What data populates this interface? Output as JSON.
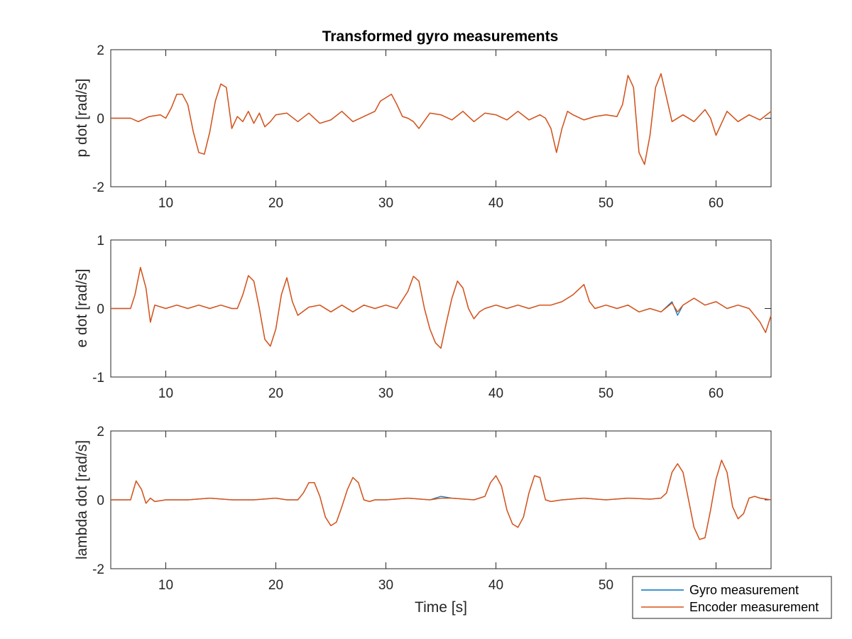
{
  "chart_data": [
    {
      "type": "line",
      "title": "Transformed gyro measurements",
      "ylabel": "p dot [rad/s]",
      "xlabel": "",
      "xlim": [
        5,
        65
      ],
      "ylim": [
        -2,
        2
      ],
      "xticks": [
        10,
        20,
        30,
        40,
        50,
        60
      ],
      "yticks": [
        -2,
        0,
        2
      ],
      "grid": false,
      "series": [
        {
          "name": "Gyro measurement",
          "color": "#0072BD",
          "x": [
            5,
            6.8,
            7.5,
            8.5,
            9.5,
            10,
            10.5,
            11,
            11.5,
            12,
            12.5,
            13,
            13.5,
            14,
            14.5,
            15,
            15.5,
            16,
            16.5,
            17,
            17.5,
            18,
            18.5,
            19,
            19.5,
            20,
            21,
            22,
            23,
            24,
            25,
            26,
            27,
            28,
            29,
            29.5,
            30,
            30.5,
            31,
            31.5,
            32,
            32.5,
            33,
            34,
            35,
            36,
            37,
            38,
            39,
            40,
            41,
            42,
            43,
            44,
            44.5,
            45,
            45.5,
            46,
            46.5,
            47,
            48,
            49,
            50,
            51,
            51.5,
            52,
            52.5,
            53,
            53.5,
            54,
            54.5,
            55,
            55.5,
            56,
            57,
            58,
            59,
            59.5,
            60,
            61,
            62,
            63,
            64,
            65
          ],
          "values": [
            0,
            0,
            -0.1,
            0.05,
            0.1,
            0,
            0.3,
            0.7,
            0.7,
            0.4,
            -0.4,
            -1.0,
            -1.05,
            -0.4,
            0.5,
            1.0,
            0.9,
            -0.3,
            0.05,
            -0.1,
            0.2,
            -0.15,
            0.15,
            -0.25,
            -0.1,
            0.1,
            0.15,
            -0.1,
            0.15,
            -0.15,
            -0.05,
            0.2,
            -0.1,
            0.05,
            0.2,
            0.5,
            0.6,
            0.7,
            0.4,
            0.05,
            0,
            -0.1,
            -0.3,
            0.15,
            0.1,
            -0.05,
            0.2,
            -0.1,
            0.15,
            0.1,
            -0.05,
            0.2,
            -0.05,
            0.1,
            0,
            -0.3,
            -1.0,
            -0.3,
            0.2,
            0.1,
            -0.05,
            0.05,
            0.1,
            0.05,
            0.4,
            1.25,
            0.9,
            -1.0,
            -1.35,
            -0.5,
            0.9,
            1.3,
            0.6,
            -0.1,
            0.1,
            -0.1,
            0.25,
            0,
            -0.5,
            0.2,
            -0.1,
            0.1,
            -0.05,
            0.2
          ]
        },
        {
          "name": "Encoder measurement",
          "color": "#D95319",
          "x": [
            5,
            6.8,
            7.5,
            8.5,
            9.5,
            10,
            10.5,
            11,
            11.5,
            12,
            12.5,
            13,
            13.5,
            14,
            14.5,
            15,
            15.5,
            16,
            16.5,
            17,
            17.5,
            18,
            18.5,
            19,
            19.5,
            20,
            21,
            22,
            23,
            24,
            25,
            26,
            27,
            28,
            29,
            29.5,
            30,
            30.5,
            31,
            31.5,
            32,
            32.5,
            33,
            34,
            35,
            36,
            37,
            38,
            39,
            40,
            41,
            42,
            43,
            44,
            44.5,
            45,
            45.5,
            46,
            46.5,
            47,
            48,
            49,
            50,
            51,
            51.5,
            52,
            52.5,
            53,
            53.5,
            54,
            54.5,
            55,
            55.5,
            56,
            57,
            58,
            59,
            59.5,
            60,
            61,
            62,
            63,
            64,
            65
          ],
          "values": [
            0,
            0,
            -0.1,
            0.05,
            0.1,
            0,
            0.3,
            0.7,
            0.7,
            0.4,
            -0.4,
            -1.0,
            -1.05,
            -0.4,
            0.5,
            1.0,
            0.9,
            -0.3,
            0.05,
            -0.1,
            0.2,
            -0.15,
            0.15,
            -0.25,
            -0.1,
            0.1,
            0.15,
            -0.1,
            0.15,
            -0.15,
            -0.05,
            0.2,
            -0.1,
            0.05,
            0.2,
            0.5,
            0.6,
            0.7,
            0.4,
            0.05,
            0,
            -0.1,
            -0.3,
            0.15,
            0.1,
            -0.05,
            0.2,
            -0.1,
            0.15,
            0.1,
            -0.05,
            0.2,
            -0.05,
            0.1,
            0,
            -0.3,
            -1.0,
            -0.3,
            0.2,
            0.1,
            -0.05,
            0.05,
            0.1,
            0.05,
            0.4,
            1.25,
            0.9,
            -1.0,
            -1.35,
            -0.5,
            0.9,
            1.3,
            0.6,
            -0.1,
            0.1,
            -0.1,
            0.25,
            0,
            -0.5,
            0.2,
            -0.1,
            0.1,
            -0.05,
            0.2
          ]
        }
      ]
    },
    {
      "type": "line",
      "title": "",
      "ylabel": "e dot [rad/s]",
      "xlabel": "",
      "xlim": [
        5,
        65
      ],
      "ylim": [
        -1,
        1
      ],
      "xticks": [
        10,
        20,
        30,
        40,
        50,
        60
      ],
      "yticks": [
        -1,
        0,
        1
      ],
      "grid": false,
      "series": [
        {
          "name": "Gyro measurement",
          "color": "#0072BD",
          "x": [
            5,
            6.8,
            7.2,
            7.7,
            8.2,
            8.6,
            9,
            10,
            11,
            12,
            13,
            14,
            15,
            16,
            16.5,
            17,
            17.5,
            18,
            18.5,
            19,
            19.5,
            20,
            20.5,
            21,
            21.5,
            22,
            23,
            24,
            25,
            26,
            27,
            28,
            29,
            30,
            31,
            32,
            32.5,
            33,
            33.5,
            34,
            34.5,
            35,
            35.5,
            36,
            36.5,
            37,
            37.5,
            38,
            38.5,
            39,
            40,
            41,
            42,
            43,
            44,
            45,
            46,
            47,
            48,
            48.5,
            49,
            50,
            51,
            52,
            53,
            54,
            55,
            56,
            56.5,
            57,
            58,
            59,
            60,
            61,
            62,
            63,
            64,
            64.5,
            65
          ],
          "values": [
            0,
            0,
            0.2,
            0.6,
            0.3,
            -0.2,
            0.05,
            0,
            0.05,
            0,
            0.05,
            0,
            0.05,
            0,
            0,
            0.2,
            0.48,
            0.4,
            0,
            -0.45,
            -0.55,
            -0.3,
            0.2,
            0.45,
            0.1,
            -0.1,
            0.02,
            0.05,
            -0.05,
            0.05,
            -0.05,
            0.05,
            0,
            0.05,
            0,
            0.25,
            0.47,
            0.4,
            0,
            -0.3,
            -0.5,
            -0.58,
            -0.2,
            0.15,
            0.4,
            0.3,
            0,
            -0.15,
            -0.05,
            0,
            0.05,
            0,
            0.05,
            0,
            0.05,
            0.05,
            0.1,
            0.2,
            0.35,
            0.1,
            0,
            0.05,
            0,
            0.05,
            -0.05,
            0,
            -0.05,
            0.1,
            -0.1,
            0.05,
            0.15,
            0.05,
            0.1,
            0,
            0.05,
            0,
            -0.2,
            -0.35,
            -0.1
          ]
        },
        {
          "name": "Encoder measurement",
          "color": "#D95319",
          "x": [
            5,
            6.8,
            7.2,
            7.7,
            8.2,
            8.6,
            9,
            10,
            11,
            12,
            13,
            14,
            15,
            16,
            16.5,
            17,
            17.5,
            18,
            18.5,
            19,
            19.5,
            20,
            20.5,
            21,
            21.5,
            22,
            23,
            24,
            25,
            26,
            27,
            28,
            29,
            30,
            31,
            32,
            32.5,
            33,
            33.5,
            34,
            34.5,
            35,
            35.5,
            36,
            36.5,
            37,
            37.5,
            38,
            38.5,
            39,
            40,
            41,
            42,
            43,
            44,
            45,
            46,
            47,
            48,
            48.5,
            49,
            50,
            51,
            52,
            53,
            54,
            55,
            56,
            56.5,
            57,
            58,
            59,
            60,
            61,
            62,
            63,
            64,
            64.5,
            65
          ],
          "values": [
            0,
            0,
            0.2,
            0.6,
            0.3,
            -0.2,
            0.05,
            0,
            0.05,
            0,
            0.05,
            0,
            0.05,
            0,
            0,
            0.2,
            0.48,
            0.4,
            0,
            -0.45,
            -0.55,
            -0.3,
            0.2,
            0.45,
            0.1,
            -0.1,
            0.02,
            0.05,
            -0.05,
            0.05,
            -0.05,
            0.05,
            0,
            0.05,
            0,
            0.25,
            0.47,
            0.4,
            0,
            -0.3,
            -0.5,
            -0.58,
            -0.2,
            0.15,
            0.4,
            0.3,
            0,
            -0.15,
            -0.05,
            0,
            0.05,
            0,
            0.05,
            0,
            0.05,
            0.05,
            0.1,
            0.2,
            0.35,
            0.1,
            0,
            0.05,
            0,
            0.05,
            -0.05,
            0,
            -0.05,
            0.08,
            -0.05,
            0.05,
            0.15,
            0.05,
            0.1,
            0,
            0.05,
            0,
            -0.2,
            -0.35,
            -0.1
          ]
        }
      ]
    },
    {
      "type": "line",
      "title": "",
      "ylabel": "lambda dot [rad/s]",
      "xlabel": "Time [s]",
      "xlim": [
        5,
        65
      ],
      "ylim": [
        -2,
        2
      ],
      "xticks": [
        10,
        20,
        30,
        40,
        50,
        60
      ],
      "yticks": [
        -2,
        0,
        2
      ],
      "grid": false,
      "series": [
        {
          "name": "Gyro measurement",
          "color": "#0072BD",
          "x": [
            5,
            6.8,
            7.3,
            7.8,
            8.2,
            8.6,
            9,
            10,
            12,
            14,
            16,
            18,
            20,
            21,
            22,
            22.5,
            23,
            23.5,
            24,
            24.5,
            25,
            25.5,
            26,
            26.5,
            27,
            27.5,
            28,
            28.5,
            29,
            30,
            32,
            34,
            35,
            36,
            38,
            39,
            39.5,
            40,
            40.5,
            41,
            41.5,
            42,
            42.5,
            43,
            43.5,
            44,
            44.5,
            45,
            46,
            48,
            50,
            52,
            54,
            55,
            55.5,
            56,
            56.5,
            57,
            57.5,
            58,
            58.5,
            59,
            59.5,
            60,
            60.5,
            61,
            61.5,
            62,
            62.5,
            63,
            63.5,
            64,
            65
          ],
          "values": [
            0,
            0,
            0.55,
            0.3,
            -0.1,
            0.05,
            -0.05,
            0,
            0,
            0.05,
            0,
            0,
            0.05,
            0,
            0,
            0.2,
            0.5,
            0.5,
            0.1,
            -0.5,
            -0.75,
            -0.65,
            -0.2,
            0.3,
            0.65,
            0.5,
            0,
            -0.05,
            0,
            0,
            0.05,
            0,
            0.1,
            0.05,
            0,
            0.1,
            0.5,
            0.7,
            0.4,
            -0.3,
            -0.7,
            -0.8,
            -0.5,
            0.2,
            0.7,
            0.65,
            0,
            -0.05,
            0,
            0.05,
            0,
            0.05,
            0.02,
            0.05,
            0.2,
            0.8,
            1.05,
            0.8,
            0,
            -0.8,
            -1.15,
            -1.1,
            -0.3,
            0.6,
            1.15,
            0.8,
            -0.2,
            -0.55,
            -0.4,
            0.05,
            0.1,
            0.05,
            0
          ]
        },
        {
          "name": "Encoder measurement",
          "color": "#D95319",
          "x": [
            5,
            6.8,
            7.3,
            7.8,
            8.2,
            8.6,
            9,
            10,
            12,
            14,
            16,
            18,
            20,
            21,
            22,
            22.5,
            23,
            23.5,
            24,
            24.5,
            25,
            25.5,
            26,
            26.5,
            27,
            27.5,
            28,
            28.5,
            29,
            30,
            32,
            34,
            35,
            36,
            38,
            39,
            39.5,
            40,
            40.5,
            41,
            41.5,
            42,
            42.5,
            43,
            43.5,
            44,
            44.5,
            45,
            46,
            48,
            50,
            52,
            54,
            55,
            55.5,
            56,
            56.5,
            57,
            57.5,
            58,
            58.5,
            59,
            59.5,
            60,
            60.5,
            61,
            61.5,
            62,
            62.5,
            63,
            63.5,
            64,
            65
          ],
          "values": [
            0,
            0,
            0.55,
            0.3,
            -0.1,
            0.05,
            -0.05,
            0,
            0,
            0.05,
            0,
            0,
            0.05,
            0,
            0,
            0.2,
            0.5,
            0.5,
            0.1,
            -0.5,
            -0.75,
            -0.65,
            -0.2,
            0.3,
            0.65,
            0.5,
            0,
            -0.05,
            0,
            0,
            0.05,
            0,
            0.05,
            0.05,
            0,
            0.1,
            0.5,
            0.7,
            0.4,
            -0.3,
            -0.7,
            -0.8,
            -0.5,
            0.2,
            0.7,
            0.65,
            0,
            -0.05,
            0,
            0.05,
            0,
            0.05,
            0.02,
            0.05,
            0.2,
            0.8,
            1.05,
            0.8,
            0,
            -0.8,
            -1.15,
            -1.1,
            -0.3,
            0.6,
            1.15,
            0.8,
            -0.2,
            -0.55,
            -0.4,
            0.05,
            0.1,
            0.05,
            0
          ]
        }
      ]
    }
  ],
  "legend": {
    "placement": "bottom-right",
    "entries": [
      {
        "label": "Gyro measurement",
        "color": "#0072BD"
      },
      {
        "label": "Encoder measurement",
        "color": "#D95319"
      }
    ]
  }
}
